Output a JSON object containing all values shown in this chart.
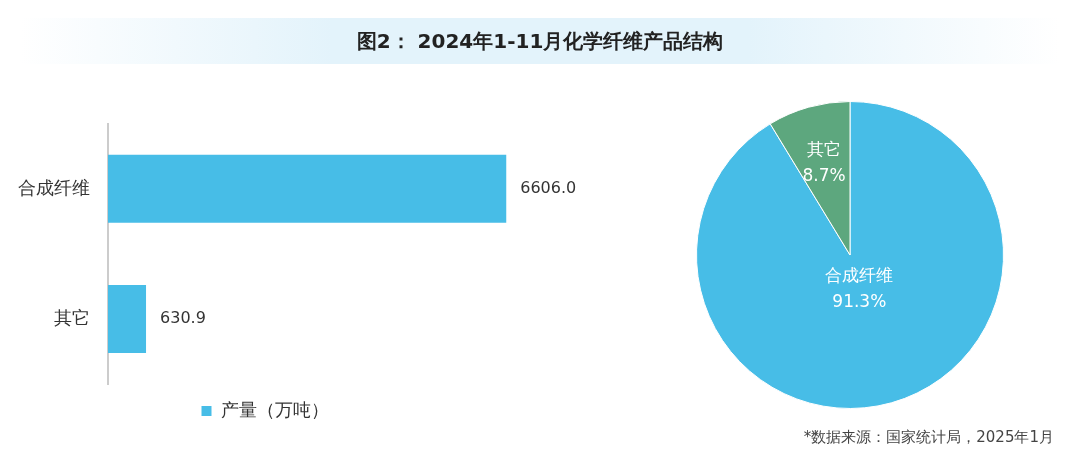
{
  "chart_data": [
    {
      "type": "bar",
      "orientation": "horizontal",
      "title": "图2： 2024年1-11月化学纤维产品结构",
      "categories": [
        "合成纤维",
        "其它"
      ],
      "series": [
        {
          "name": "产量（万吨）",
          "color": "#47bde7",
          "values": [
            6606.0,
            630.9
          ],
          "value_labels": [
            "6606.0",
            "630.9"
          ]
        }
      ],
      "legend": "bottom",
      "grid": false
    },
    {
      "type": "pie",
      "categories": [
        "合成纤维",
        "其它"
      ],
      "values": [
        91.3,
        8.7
      ],
      "colors": [
        "#47bde7",
        "#5da77e"
      ],
      "value_labels": [
        "91.3%",
        "8.7%"
      ],
      "annotations": [
        "*数据来源：国家统计局，2025年1月"
      ]
    }
  ]
}
